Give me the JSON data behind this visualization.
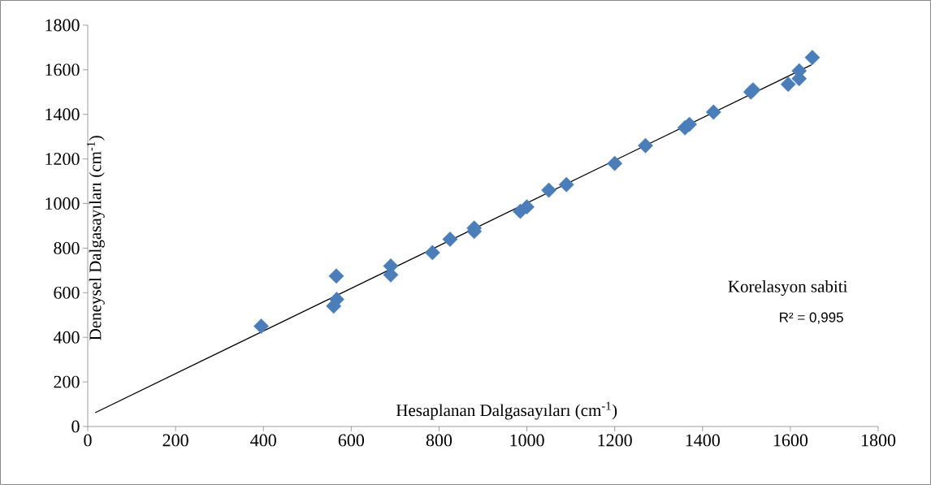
{
  "chart_data": {
    "type": "scatter",
    "xlabel": "Hesaplanan Dalgasayıları (cm$^{-1}$)",
    "ylabel": "Deneysel Dalgasayıları (cm$^{-1}$)",
    "annotations": [
      "Korelasyon sabiti",
      "R² = 0,995"
    ],
    "xlim": [
      0,
      1800
    ],
    "ylim": [
      0,
      1800
    ],
    "xticks": [
      0,
      200,
      400,
      600,
      800,
      1000,
      1200,
      1400,
      1600,
      1800
    ],
    "yticks": [
      0,
      200,
      400,
      600,
      800,
      1000,
      1200,
      1400,
      1600,
      1800
    ],
    "grid": false,
    "series": [
      {
        "color": "#4a7ebb",
        "marker": "diamond",
        "x": [
          395,
          566,
          567,
          560,
          690,
          690,
          785,
          825,
          880,
          880,
          985,
          1000,
          1050,
          1090,
          1200,
          1270,
          1360,
          1370,
          1425,
          1510,
          1515,
          1595,
          1620,
          1620,
          1650
        ],
        "values": [
          450,
          675,
          570,
          540,
          720,
          680,
          780,
          840,
          875,
          890,
          965,
          985,
          1060,
          1085,
          1180,
          1260,
          1340,
          1355,
          1410,
          1500,
          1510,
          1535,
          1560,
          1595,
          1655
        ]
      },
      {
        "type": "line",
        "color": "#000000",
        "marker": "none",
        "x": [
          17,
          1648
        ],
        "values": [
          62,
          1622
        ]
      }
    ]
  }
}
